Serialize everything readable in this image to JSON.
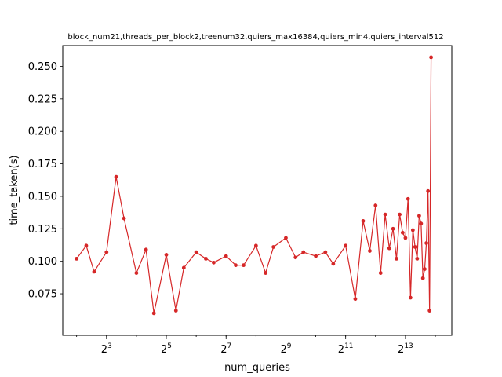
{
  "chart_data": {
    "type": "line",
    "title": "block_num21,threads_per_block2,treenum32,quiers_max16384,quiers_min4,quiers_interval512",
    "xlabel": "num_queries",
    "ylabel": "time_taken(s)",
    "xscale": "log2",
    "x_ticks": [
      {
        "value": 8,
        "base": "2",
        "exp": "3"
      },
      {
        "value": 32,
        "base": "2",
        "exp": "5"
      },
      {
        "value": 128,
        "base": "2",
        "exp": "7"
      },
      {
        "value": 512,
        "base": "2",
        "exp": "9"
      },
      {
        "value": 2048,
        "base": "2",
        "exp": "11"
      },
      {
        "value": 8192,
        "base": "2",
        "exp": "13"
      }
    ],
    "y_ticks": [
      "0.075",
      "0.100",
      "0.125",
      "0.150",
      "0.175",
      "0.200",
      "0.225",
      "0.250"
    ],
    "xlim": [
      2.9,
      24000
    ],
    "ylim": [
      0.043,
      0.266
    ],
    "grid": false,
    "color": "#d62728",
    "series": [
      {
        "x": [
          4,
          5,
          6,
          8,
          10,
          12,
          16,
          20,
          24,
          32,
          40,
          48,
          64,
          80,
          96,
          128,
          160,
          192,
          256,
          320,
          384,
          512,
          640,
          768,
          1024,
          1280,
          1536,
          2048,
          2560,
          3072,
          3584,
          4096,
          4608,
          5120,
          5632,
          6144,
          6656,
          7168,
          7680,
          8192,
          8704,
          9216,
          9728,
          10240,
          10752,
          11264,
          11776,
          12288,
          12800,
          13312,
          13824,
          14336,
          14848
        ],
        "y": [
          0.102,
          0.112,
          0.092,
          0.107,
          0.165,
          0.133,
          0.091,
          0.109,
          0.06,
          0.105,
          0.062,
          0.095,
          0.107,
          0.102,
          0.099,
          0.104,
          0.097,
          0.097,
          0.112,
          0.091,
          0.111,
          0.118,
          0.103,
          0.107,
          0.104,
          0.107,
          0.098,
          0.112,
          0.071,
          0.131,
          0.108,
          0.143,
          0.091,
          0.136,
          0.11,
          0.125,
          0.102,
          0.136,
          0.122,
          0.118,
          0.148,
          0.072,
          0.124,
          0.111,
          0.102,
          0.135,
          0.129,
          0.087,
          0.094,
          0.114,
          0.154,
          0.062,
          0.257
        ]
      }
    ]
  }
}
